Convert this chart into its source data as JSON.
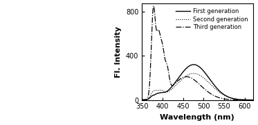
{
  "xlim": [
    350,
    620
  ],
  "ylim": [
    0,
    870
  ],
  "yticks": [
    0,
    400,
    800
  ],
  "xticks": [
    350,
    400,
    450,
    500,
    550,
    600
  ],
  "xlabel": "Wavelength (nm)",
  "ylabel": "Fl. Intensity",
  "legend_entries": [
    "First generation",
    "Second generation",
    "Third generation"
  ],
  "legend_styles": [
    "solid",
    "dotted",
    "dashdot"
  ],
  "background_color": "#ffffff",
  "line_color": "#000000",
  "axis_fontsize": 7,
  "label_fontsize": 8
}
